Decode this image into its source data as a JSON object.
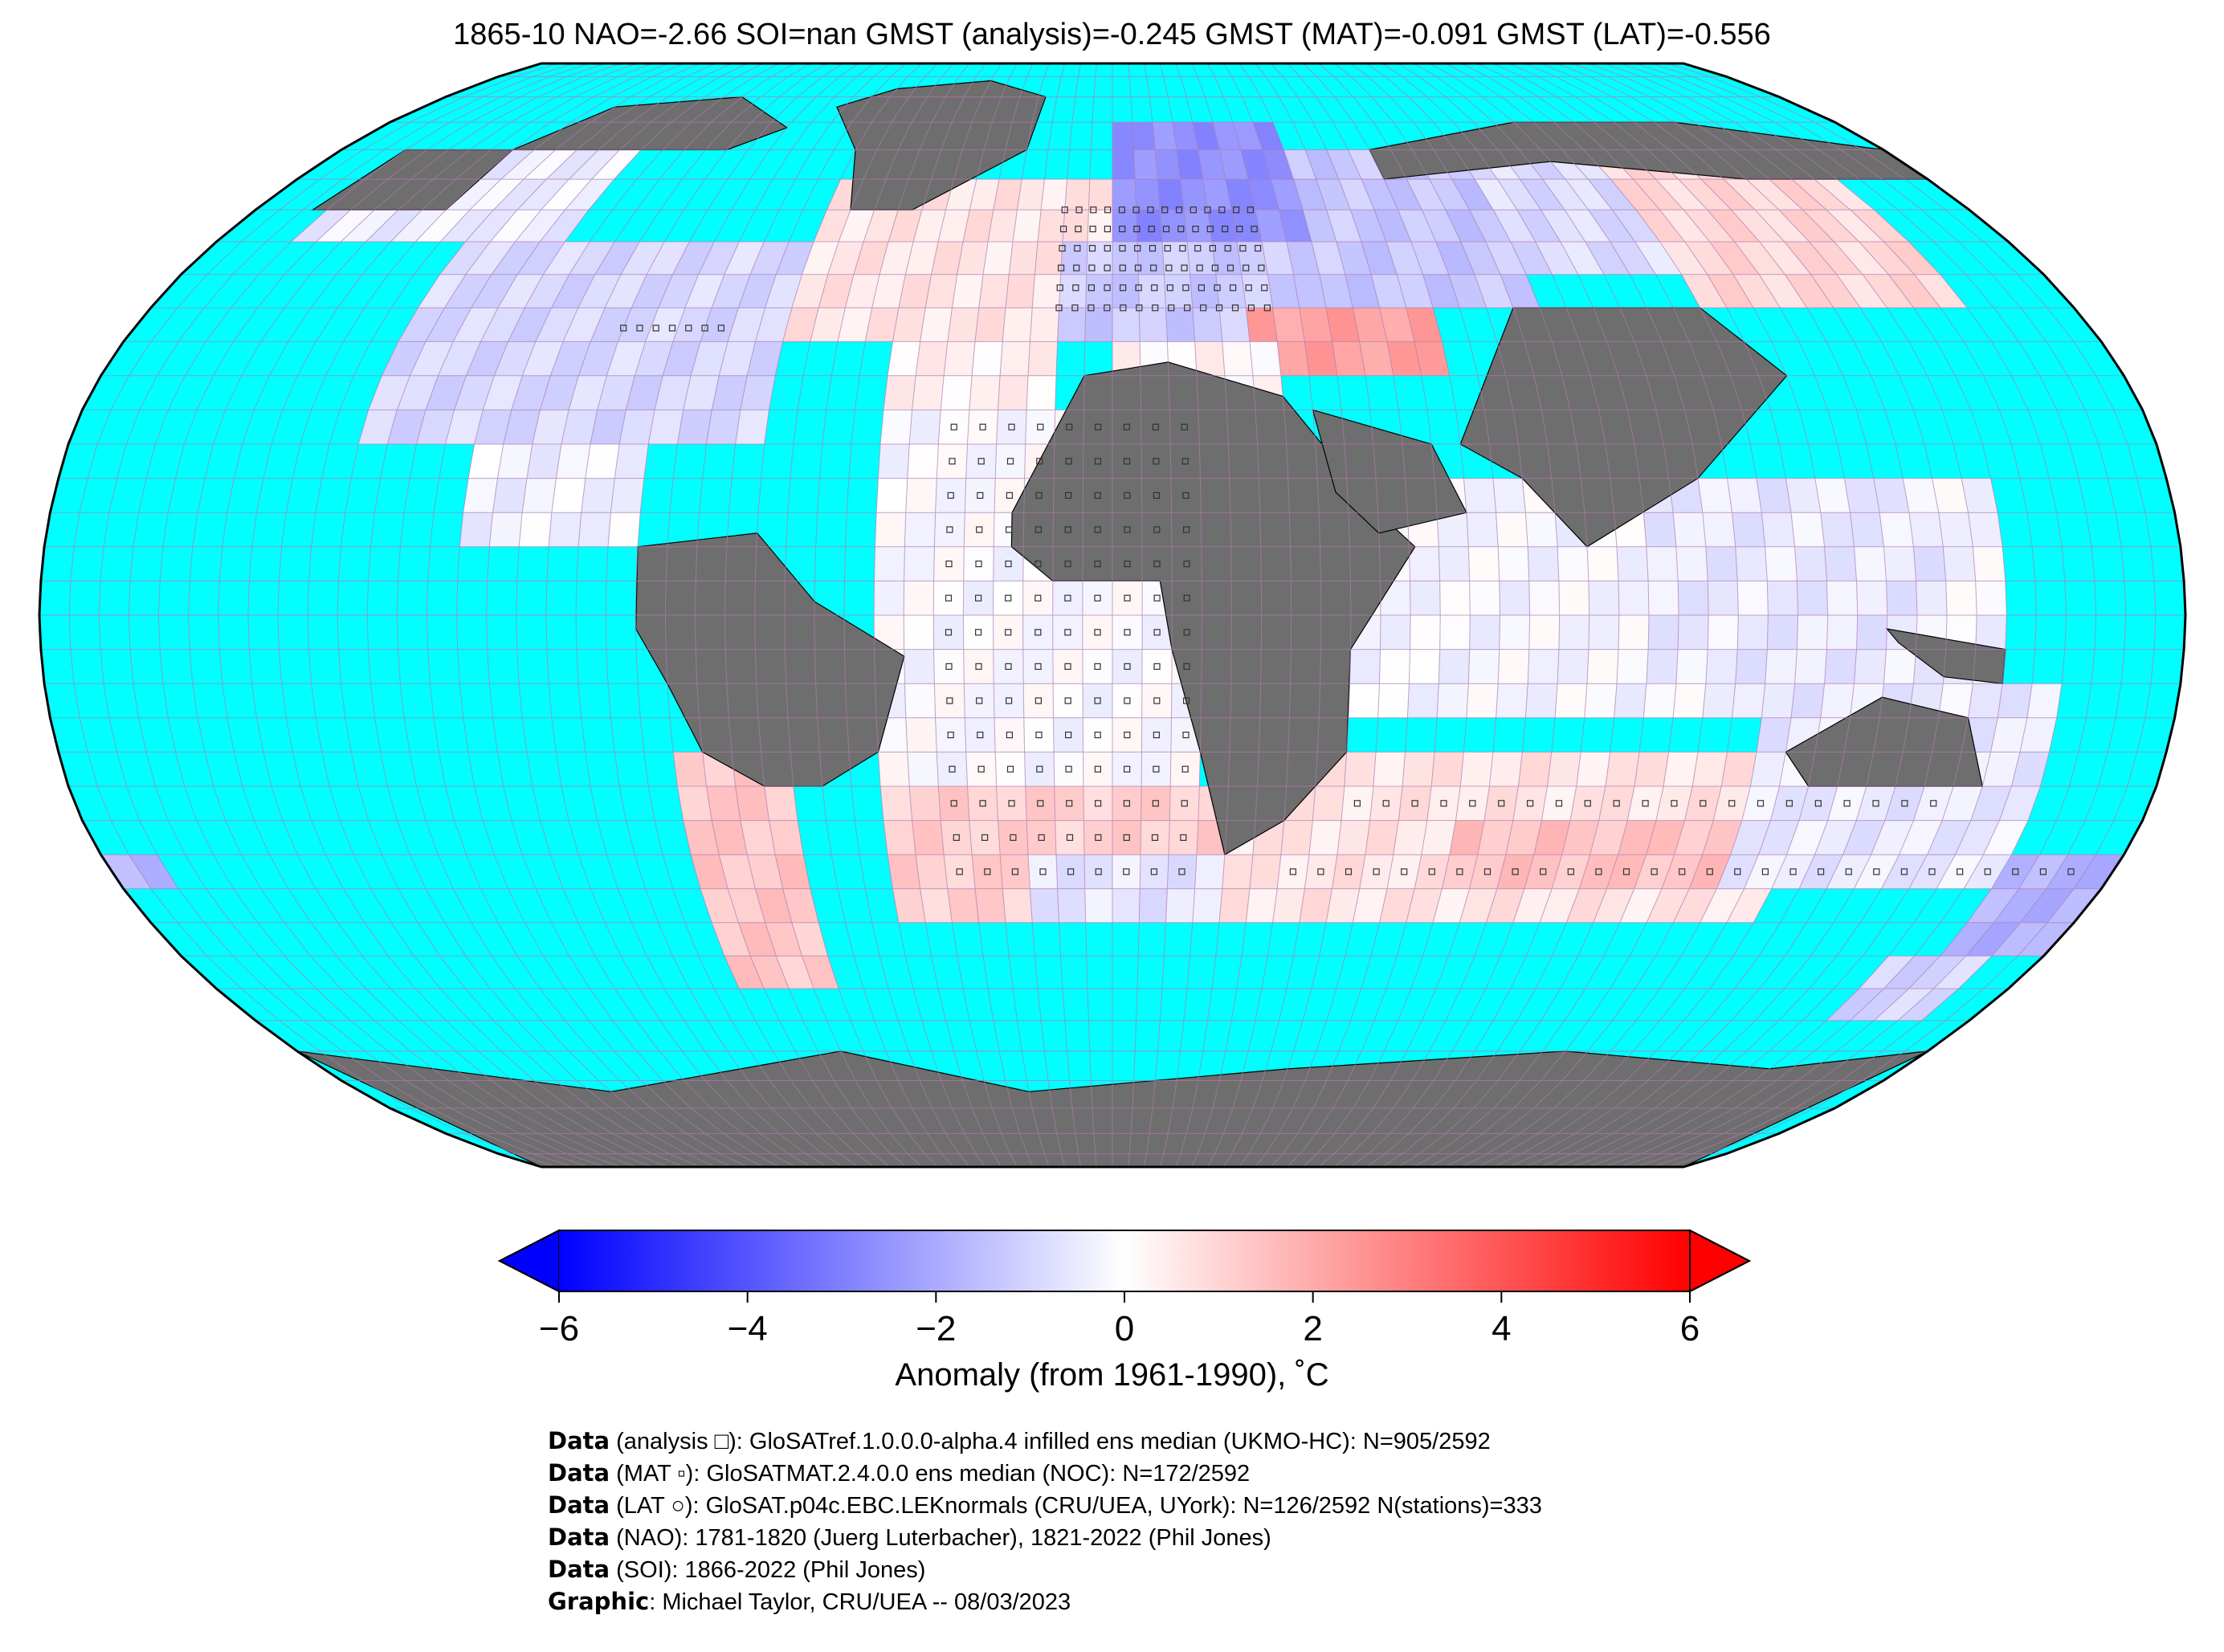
{
  "title": "1865-10 NAO=-2.66 SOI=nan GMST (analysis)=-0.245 GMST (MAT)=-0.091 GMST (LAT)=-0.556",
  "map": {
    "projection": "robinson",
    "ocean_color": "#00ffff",
    "land_nodata_color": "#6e6e6e",
    "grid_color": "#b07ab0",
    "coast_color": "#000000"
  },
  "colorbar": {
    "colormap": "bwr",
    "min": -6,
    "max": 6,
    "ticks": [
      "−6",
      "−4",
      "−2",
      "0",
      "2",
      "4",
      "6"
    ],
    "tick_values": [
      -6,
      -4,
      -2,
      0,
      2,
      4,
      6
    ],
    "label": "Anomaly (from 1961-1990), ˚C",
    "extend": "both",
    "min_color": "#0000ff",
    "mid_color": "#ffffff",
    "max_color": "#ff0000"
  },
  "credits": [
    {
      "key": "Data",
      "text": " (analysis □): GloSATref.1.0.0.0-alpha.4 infilled ens median (UKMO-HC): N=905/2592"
    },
    {
      "key": "Data",
      "text": " (MAT ▫): GloSATMAT.2.4.0.0 ens median (NOC): N=172/2592"
    },
    {
      "key": "Data",
      "text": " (LAT ○): GloSAT.p04c.EBC.LEKnormals (CRU/UEA, UYork): N=126/2592 N(stations)=333"
    },
    {
      "key": "Data",
      "text": " (NAO): 1781-1820 (Juerg Luterbacher), 1821-2022 (Phil Jones)"
    },
    {
      "key": "Data",
      "text": " (SOI): 1866-2022 (Phil Jones)"
    },
    {
      "key": "Graphic",
      "text": ": Michael Taylor, CRU/UEA -- 08/03/2023"
    }
  ]
}
